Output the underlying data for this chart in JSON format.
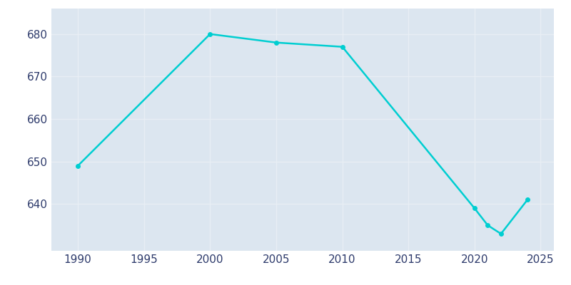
{
  "years": [
    1990,
    2000,
    2005,
    2010,
    2020,
    2021,
    2022,
    2024
  ],
  "population": [
    649,
    680,
    678,
    677,
    639,
    635,
    633,
    641
  ],
  "line_color": "#00CED1",
  "plot_bg_color": "#dce6f0",
  "fig_bg_color": "#ffffff",
  "grid_color": "#e8eef5",
  "text_color": "#2d3a6b",
  "xlim": [
    1988,
    2026
  ],
  "ylim": [
    629,
    686
  ],
  "xticks": [
    1990,
    1995,
    2000,
    2005,
    2010,
    2015,
    2020,
    2025
  ],
  "yticks": [
    640,
    650,
    660,
    670,
    680
  ],
  "linewidth": 1.8,
  "markersize": 4
}
